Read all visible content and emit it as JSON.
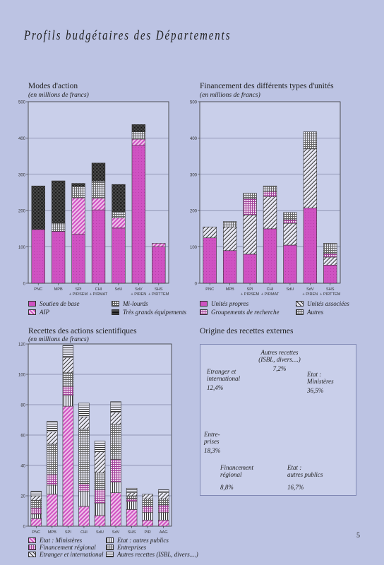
{
  "page": {
    "title": "Profils budgétaires des Départements",
    "page_number": "5"
  },
  "chart_data": [
    {
      "id": "modes",
      "type": "bar",
      "stacked": true,
      "title": "Modes d'action",
      "subtitle": "(en millions de francs)",
      "ylim": [
        0,
        500
      ],
      "yticks": [
        0,
        100,
        200,
        300,
        400,
        500
      ],
      "categories": [
        "PNC",
        "MPB",
        "SPI\n+ PIRSEM",
        "CHI\n+ PIRMAT",
        "SdU",
        "SdV\n+ PIREN",
        "SHS\n+ PIRTTEM"
      ],
      "series": [
        {
          "name": "Soutien de base",
          "pattern": "pink",
          "values": [
            148,
            143,
            135,
            202,
            152,
            380,
            100
          ]
        },
        {
          "name": "AIP",
          "pattern": "pinkhatch",
          "values": [
            0,
            0,
            100,
            32,
            28,
            17,
            10
          ]
        },
        {
          "name": "Mi-lourds",
          "pattern": "check",
          "values": [
            0,
            22,
            32,
            47,
            17,
            20,
            0
          ]
        },
        {
          "name": "Très grands équipements",
          "pattern": "dark",
          "values": [
            120,
            117,
            8,
            50,
            75,
            20,
            0
          ]
        }
      ]
    },
    {
      "id": "financement",
      "type": "bar",
      "stacked": true,
      "title": "Financement des différents types d'unités",
      "subtitle": "(en millions de francs)",
      "ylim": [
        0,
        500
      ],
      "yticks": [
        0,
        100,
        200,
        300,
        400,
        500
      ],
      "categories": [
        "PNC",
        "MPB",
        "SPI\n+ PIRSEM",
        "CHI\n+ PIRMAT",
        "SdU",
        "SdV\n+ PIREN",
        "SHS\n+ PIRTTEM"
      ],
      "series": [
        {
          "name": "Unités propres",
          "pattern": "pink",
          "values": [
            125,
            90,
            80,
            150,
            105,
            207,
            50
          ]
        },
        {
          "name": "Unités associées",
          "pattern": "diag",
          "values": [
            30,
            65,
            108,
            88,
            60,
            163,
            22
          ]
        },
        {
          "name": "Groupements de recherche",
          "pattern": "grid",
          "values": [
            0,
            0,
            45,
            15,
            10,
            0,
            10
          ]
        },
        {
          "name": "Autres",
          "pattern": "check",
          "values": [
            0,
            15,
            15,
            15,
            20,
            47,
            28
          ]
        }
      ]
    },
    {
      "id": "recettes",
      "type": "bar",
      "stacked": true,
      "title": "Recettes des actions scientifiques",
      "subtitle": "(en millions de francs)",
      "ylim": [
        0,
        120
      ],
      "yticks": [
        0,
        20,
        40,
        60,
        80,
        100,
        120
      ],
      "categories": [
        "PNC",
        "MPB",
        "SPI",
        "CHI",
        "SdU",
        "SdV",
        "SHS",
        "PIR",
        "AAG"
      ],
      "series": [
        {
          "name": "Etat : Ministères",
          "pattern": "pinkhatch",
          "values": [
            5,
            21,
            79,
            13,
            7,
            22,
            11,
            4,
            4
          ]
        },
        {
          "name": "Etat : autres publics",
          "pattern": "vert",
          "values": [
            3,
            6,
            7,
            10,
            8,
            7,
            5,
            5,
            5
          ]
        },
        {
          "name": "Financement régional",
          "pattern": "grid",
          "values": [
            4,
            7,
            6,
            5,
            9,
            15,
            2,
            4,
            5
          ]
        },
        {
          "name": "Entreprises",
          "pattern": "check",
          "values": [
            5,
            20,
            9,
            36,
            11,
            23,
            2,
            5,
            4
          ]
        },
        {
          "name": "Etranger et international",
          "pattern": "diag",
          "values": [
            3,
            8,
            10,
            8,
            14,
            8,
            2,
            3,
            4
          ]
        },
        {
          "name": "Autres recettes (ISBL, divers....)",
          "pattern": "horiz",
          "values": [
            3,
            7,
            8,
            9,
            7,
            7,
            3,
            0,
            2
          ]
        }
      ]
    },
    {
      "id": "origine",
      "type": "pie",
      "title": "Origine des recettes externes",
      "slices": [
        {
          "name": "Etat : Ministères",
          "label_lines": [
            "Etat :",
            "Ministères"
          ],
          "value": 36.5,
          "pct": "36,5%",
          "pattern": "pink"
        },
        {
          "name": "Etat : autres publics",
          "label_lines": [
            "Etat :",
            "autres publics"
          ],
          "value": 16.7,
          "pct": "16,7%",
          "pattern": "vert"
        },
        {
          "name": "Financement régional",
          "label_lines": [
            "Financement",
            "régional"
          ],
          "value": 8.8,
          "pct": "8,8%",
          "pattern": "grid"
        },
        {
          "name": "Entreprises",
          "label_lines": [
            "Entre-",
            "prises"
          ],
          "value": 18.3,
          "pct": "18,3%",
          "pattern": "check"
        },
        {
          "name": "Etranger et international",
          "label_lines": [
            "Etranger et",
            "international"
          ],
          "value": 12.4,
          "pct": "12,4%",
          "pattern": "diag"
        },
        {
          "name": "Autres recettes (ISBL, divers....)",
          "label_lines": [
            "Autres recettes",
            "(ISBL, divers....)"
          ],
          "value": 7.2,
          "pct": "7,2%",
          "pattern": "horiz"
        }
      ]
    }
  ]
}
